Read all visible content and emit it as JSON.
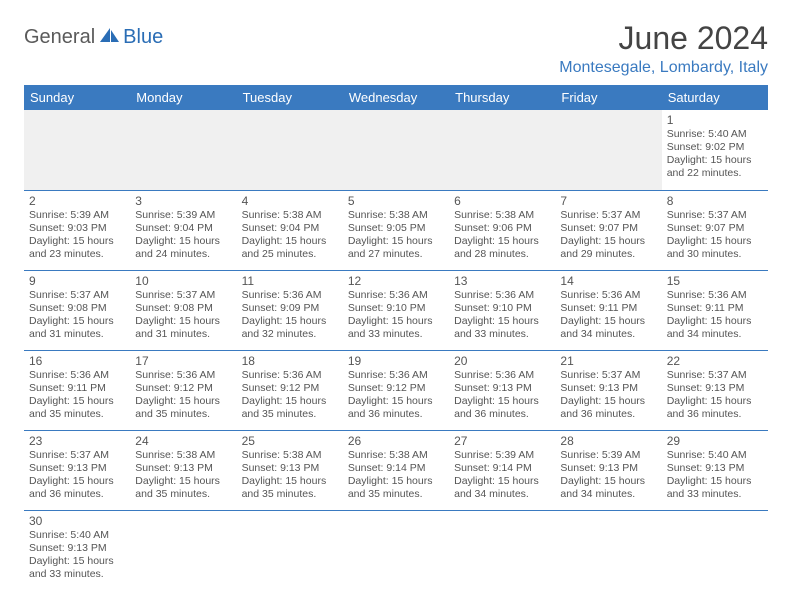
{
  "brand": {
    "part1": "General",
    "part2": "Blue"
  },
  "title": "June 2024",
  "location": "Montesegale, Lombardy, Italy",
  "colors": {
    "header_bg": "#3a7ac0",
    "header_text": "#ffffff",
    "brand_accent": "#2a6db5",
    "text": "#555555",
    "empty_bg": "#f0f0f0",
    "rule": "#3a7ac0"
  },
  "weekday_labels": [
    "Sunday",
    "Monday",
    "Tuesday",
    "Wednesday",
    "Thursday",
    "Friday",
    "Saturday"
  ],
  "weeks": [
    [
      null,
      null,
      null,
      null,
      null,
      null,
      {
        "d": "1",
        "sr": "5:40 AM",
        "ss": "9:02 PM",
        "dl": "15 hours and 22 minutes."
      }
    ],
    [
      {
        "d": "2",
        "sr": "5:39 AM",
        "ss": "9:03 PM",
        "dl": "15 hours and 23 minutes."
      },
      {
        "d": "3",
        "sr": "5:39 AM",
        "ss": "9:04 PM",
        "dl": "15 hours and 24 minutes."
      },
      {
        "d": "4",
        "sr": "5:38 AM",
        "ss": "9:04 PM",
        "dl": "15 hours and 25 minutes."
      },
      {
        "d": "5",
        "sr": "5:38 AM",
        "ss": "9:05 PM",
        "dl": "15 hours and 27 minutes."
      },
      {
        "d": "6",
        "sr": "5:38 AM",
        "ss": "9:06 PM",
        "dl": "15 hours and 28 minutes."
      },
      {
        "d": "7",
        "sr": "5:37 AM",
        "ss": "9:07 PM",
        "dl": "15 hours and 29 minutes."
      },
      {
        "d": "8",
        "sr": "5:37 AM",
        "ss": "9:07 PM",
        "dl": "15 hours and 30 minutes."
      }
    ],
    [
      {
        "d": "9",
        "sr": "5:37 AM",
        "ss": "9:08 PM",
        "dl": "15 hours and 31 minutes."
      },
      {
        "d": "10",
        "sr": "5:37 AM",
        "ss": "9:08 PM",
        "dl": "15 hours and 31 minutes."
      },
      {
        "d": "11",
        "sr": "5:36 AM",
        "ss": "9:09 PM",
        "dl": "15 hours and 32 minutes."
      },
      {
        "d": "12",
        "sr": "5:36 AM",
        "ss": "9:10 PM",
        "dl": "15 hours and 33 minutes."
      },
      {
        "d": "13",
        "sr": "5:36 AM",
        "ss": "9:10 PM",
        "dl": "15 hours and 33 minutes."
      },
      {
        "d": "14",
        "sr": "5:36 AM",
        "ss": "9:11 PM",
        "dl": "15 hours and 34 minutes."
      },
      {
        "d": "15",
        "sr": "5:36 AM",
        "ss": "9:11 PM",
        "dl": "15 hours and 34 minutes."
      }
    ],
    [
      {
        "d": "16",
        "sr": "5:36 AM",
        "ss": "9:11 PM",
        "dl": "15 hours and 35 minutes."
      },
      {
        "d": "17",
        "sr": "5:36 AM",
        "ss": "9:12 PM",
        "dl": "15 hours and 35 minutes."
      },
      {
        "d": "18",
        "sr": "5:36 AM",
        "ss": "9:12 PM",
        "dl": "15 hours and 35 minutes."
      },
      {
        "d": "19",
        "sr": "5:36 AM",
        "ss": "9:12 PM",
        "dl": "15 hours and 36 minutes."
      },
      {
        "d": "20",
        "sr": "5:36 AM",
        "ss": "9:13 PM",
        "dl": "15 hours and 36 minutes."
      },
      {
        "d": "21",
        "sr": "5:37 AM",
        "ss": "9:13 PM",
        "dl": "15 hours and 36 minutes."
      },
      {
        "d": "22",
        "sr": "5:37 AM",
        "ss": "9:13 PM",
        "dl": "15 hours and 36 minutes."
      }
    ],
    [
      {
        "d": "23",
        "sr": "5:37 AM",
        "ss": "9:13 PM",
        "dl": "15 hours and 36 minutes."
      },
      {
        "d": "24",
        "sr": "5:38 AM",
        "ss": "9:13 PM",
        "dl": "15 hours and 35 minutes."
      },
      {
        "d": "25",
        "sr": "5:38 AM",
        "ss": "9:13 PM",
        "dl": "15 hours and 35 minutes."
      },
      {
        "d": "26",
        "sr": "5:38 AM",
        "ss": "9:14 PM",
        "dl": "15 hours and 35 minutes."
      },
      {
        "d": "27",
        "sr": "5:39 AM",
        "ss": "9:14 PM",
        "dl": "15 hours and 34 minutes."
      },
      {
        "d": "28",
        "sr": "5:39 AM",
        "ss": "9:13 PM",
        "dl": "15 hours and 34 minutes."
      },
      {
        "d": "29",
        "sr": "5:40 AM",
        "ss": "9:13 PM",
        "dl": "15 hours and 33 minutes."
      }
    ],
    [
      {
        "d": "30",
        "sr": "5:40 AM",
        "ss": "9:13 PM",
        "dl": "15 hours and 33 minutes."
      },
      null,
      null,
      null,
      null,
      null,
      null
    ]
  ],
  "labels": {
    "sunrise": "Sunrise:",
    "sunset": "Sunset:",
    "daylight": "Daylight:"
  }
}
